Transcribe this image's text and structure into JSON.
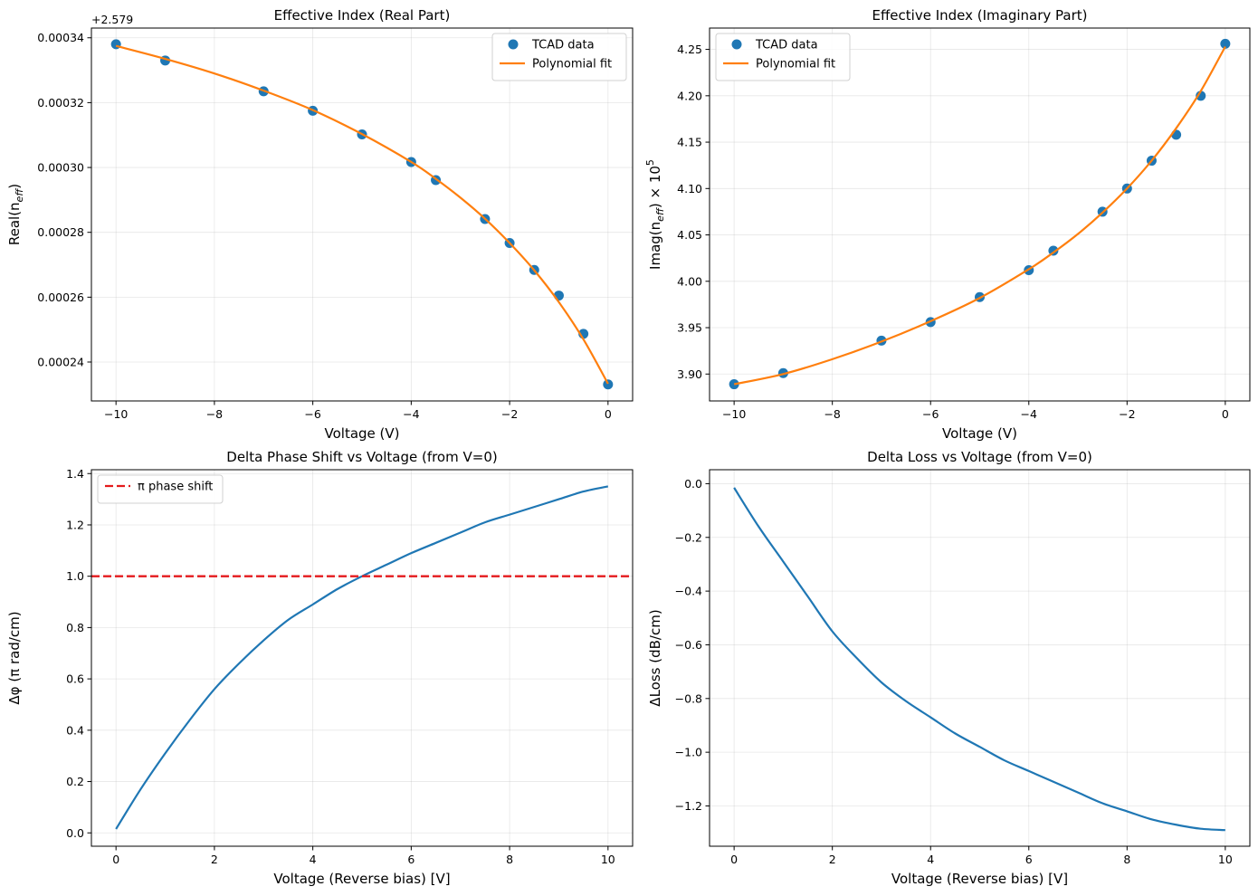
{
  "chart_data": [
    {
      "type": "scatter",
      "title": "Effective Index (Real Part)",
      "xlabel": "Voltage (V)",
      "ylabel_main": "Real(n",
      "ylabel_sub": "eff",
      "ylabel_tail": ")",
      "offset_text": "+2.579",
      "xlim": [
        -10.5,
        0.5
      ],
      "ylim": [
        0.000228,
        0.000343
      ],
      "xticks": [
        -10,
        -8,
        -6,
        -4,
        -2,
        0
      ],
      "xtick_labels": [
        "−10",
        "−8",
        "−6",
        "−4",
        "−2",
        "0"
      ],
      "yticks": [
        0.00024,
        0.00026,
        0.00028,
        0.0003,
        0.00032,
        0.00034
      ],
      "ytick_labels": [
        "0.00024",
        "0.00026",
        "0.00028",
        "0.00030",
        "0.00032",
        "0.00034"
      ],
      "grid": true,
      "legend_position": "upper right",
      "series": [
        {
          "name": "TCAD data",
          "kind": "markers",
          "color": "#1f77b4",
          "x": [
            -10,
            -9,
            -7,
            -6,
            -5,
            -4,
            -3.5,
            -2.5,
            -2,
            -1.5,
            -1,
            -0.5,
            0
          ],
          "y": [
            0.000338,
            0.000333,
            0.0003235,
            0.0003175,
            0.0003102,
            0.0003017,
            0.0002961,
            0.0002841,
            0.0002767,
            0.0002684,
            0.0002605,
            0.0002487,
            0.0002331
          ]
        },
        {
          "name": "Polynomial fit",
          "kind": "line",
          "color": "#ff7f0e",
          "x": [
            -10,
            -9,
            -8,
            -7,
            -6,
            -5,
            -4,
            -3.5,
            -3,
            -2.5,
            -2,
            -1.5,
            -1,
            -0.5,
            0
          ],
          "y": [
            0.0003375,
            0.0003335,
            0.000329,
            0.0003237,
            0.0003177,
            0.0003103,
            0.0003017,
            0.0002965,
            0.0002907,
            0.0002842,
            0.0002767,
            0.0002683,
            0.0002585,
            0.000247,
            0.0002333
          ]
        }
      ]
    },
    {
      "type": "scatter",
      "title": "Effective Index (Imaginary Part)",
      "xlabel": "Voltage (V)",
      "ylabel_main": "Imag(n",
      "ylabel_sub": "eff",
      "ylabel_tail": ") × 10",
      "ylabel_sup": "5",
      "xlim": [
        -10.5,
        0.5
      ],
      "ylim": [
        3.871,
        4.273
      ],
      "xticks": [
        -10,
        -8,
        -6,
        -4,
        -2,
        0
      ],
      "xtick_labels": [
        "−10",
        "−8",
        "−6",
        "−4",
        "−2",
        "0"
      ],
      "yticks": [
        3.9,
        3.95,
        4.0,
        4.05,
        4.1,
        4.15,
        4.2,
        4.25
      ],
      "ytick_labels": [
        "3.90",
        "3.95",
        "4.00",
        "4.05",
        "4.10",
        "4.15",
        "4.20",
        "4.25"
      ],
      "grid": true,
      "legend_position": "upper left",
      "series": [
        {
          "name": "TCAD data",
          "kind": "markers",
          "color": "#1f77b4",
          "x": [
            -10,
            -9,
            -7,
            -6,
            -5,
            -4,
            -3.5,
            -2.5,
            -2,
            -1.5,
            -1,
            -0.5,
            0
          ],
          "y": [
            3.889,
            3.901,
            3.936,
            3.956,
            3.983,
            4.012,
            4.033,
            4.075,
            4.1,
            4.13,
            4.158,
            4.2,
            4.256
          ]
        },
        {
          "name": "Polynomial fit",
          "kind": "line",
          "color": "#ff7f0e",
          "x": [
            -10,
            -9,
            -8,
            -7,
            -6,
            -5,
            -4,
            -3.5,
            -3,
            -2.5,
            -2,
            -1.5,
            -1,
            -0.5,
            0
          ],
          "y": [
            3.889,
            3.9,
            3.916,
            3.935,
            3.957,
            3.982,
            4.013,
            4.031,
            4.051,
            4.074,
            4.1,
            4.13,
            4.165,
            4.205,
            4.253
          ]
        }
      ]
    },
    {
      "type": "line",
      "title": "Delta Phase Shift vs Voltage (from V=0)",
      "xlabel": "Voltage (Reverse bias) [V]",
      "ylabel": "Δφ (π rad/cm)",
      "xlim": [
        -0.5,
        10.5
      ],
      "ylim": [
        -0.052,
        1.415
      ],
      "xticks": [
        0,
        2,
        4,
        6,
        8,
        10
      ],
      "xtick_labels": [
        "0",
        "2",
        "4",
        "6",
        "8",
        "10"
      ],
      "yticks": [
        0.0,
        0.2,
        0.4,
        0.6,
        0.8,
        1.0,
        1.2,
        1.4
      ],
      "ytick_labels": [
        "0.0",
        "0.2",
        "0.4",
        "0.6",
        "0.8",
        "1.0",
        "1.2",
        "1.4"
      ],
      "grid": true,
      "legend_position": "upper left",
      "series": [
        {
          "name": "",
          "kind": "line",
          "color": "#1f77b4",
          "x": [
            0,
            0.5,
            1,
            1.5,
            2,
            2.5,
            3,
            3.5,
            4,
            4.5,
            5,
            5.5,
            6,
            6.5,
            7,
            7.5,
            8,
            8.5,
            9,
            9.5,
            10
          ],
          "y": [
            0.015,
            0.17,
            0.31,
            0.44,
            0.56,
            0.66,
            0.75,
            0.83,
            0.89,
            0.95,
            1.0,
            1.045,
            1.09,
            1.13,
            1.17,
            1.21,
            1.24,
            1.27,
            1.3,
            1.33,
            1.35
          ]
        },
        {
          "name": "π phase shift",
          "kind": "hline",
          "color": "#e41a1c",
          "y": 1.0
        }
      ]
    },
    {
      "type": "line",
      "title": "Delta Loss vs Voltage (from V=0)",
      "xlabel": "Voltage (Reverse bias) [V]",
      "ylabel": "ΔLoss (dB/cm)",
      "xlim": [
        -0.5,
        10.5
      ],
      "ylim": [
        -1.35,
        0.052
      ],
      "xticks": [
        0,
        2,
        4,
        6,
        8,
        10
      ],
      "xtick_labels": [
        "0",
        "2",
        "4",
        "6",
        "8",
        "10"
      ],
      "yticks": [
        0.0,
        -0.2,
        -0.4,
        -0.6,
        -0.8,
        -1.0,
        -1.2
      ],
      "ytick_labels": [
        "0.0",
        "−0.2",
        "−0.4",
        "−0.6",
        "−0.8",
        "−1.0",
        "−1.2"
      ],
      "grid": true,
      "legend_position": "none",
      "series": [
        {
          "name": "",
          "kind": "line",
          "color": "#1f77b4",
          "x": [
            0,
            0.5,
            1,
            1.5,
            2,
            2.5,
            3,
            3.5,
            4,
            4.5,
            5,
            5.5,
            6,
            6.5,
            7,
            7.5,
            8,
            8.5,
            9,
            9.5,
            10
          ],
          "y": [
            -0.015,
            -0.16,
            -0.29,
            -0.42,
            -0.55,
            -0.65,
            -0.74,
            -0.81,
            -0.87,
            -0.93,
            -0.98,
            -1.03,
            -1.07,
            -1.11,
            -1.15,
            -1.19,
            -1.22,
            -1.25,
            -1.27,
            -1.285,
            -1.29
          ]
        }
      ]
    }
  ]
}
